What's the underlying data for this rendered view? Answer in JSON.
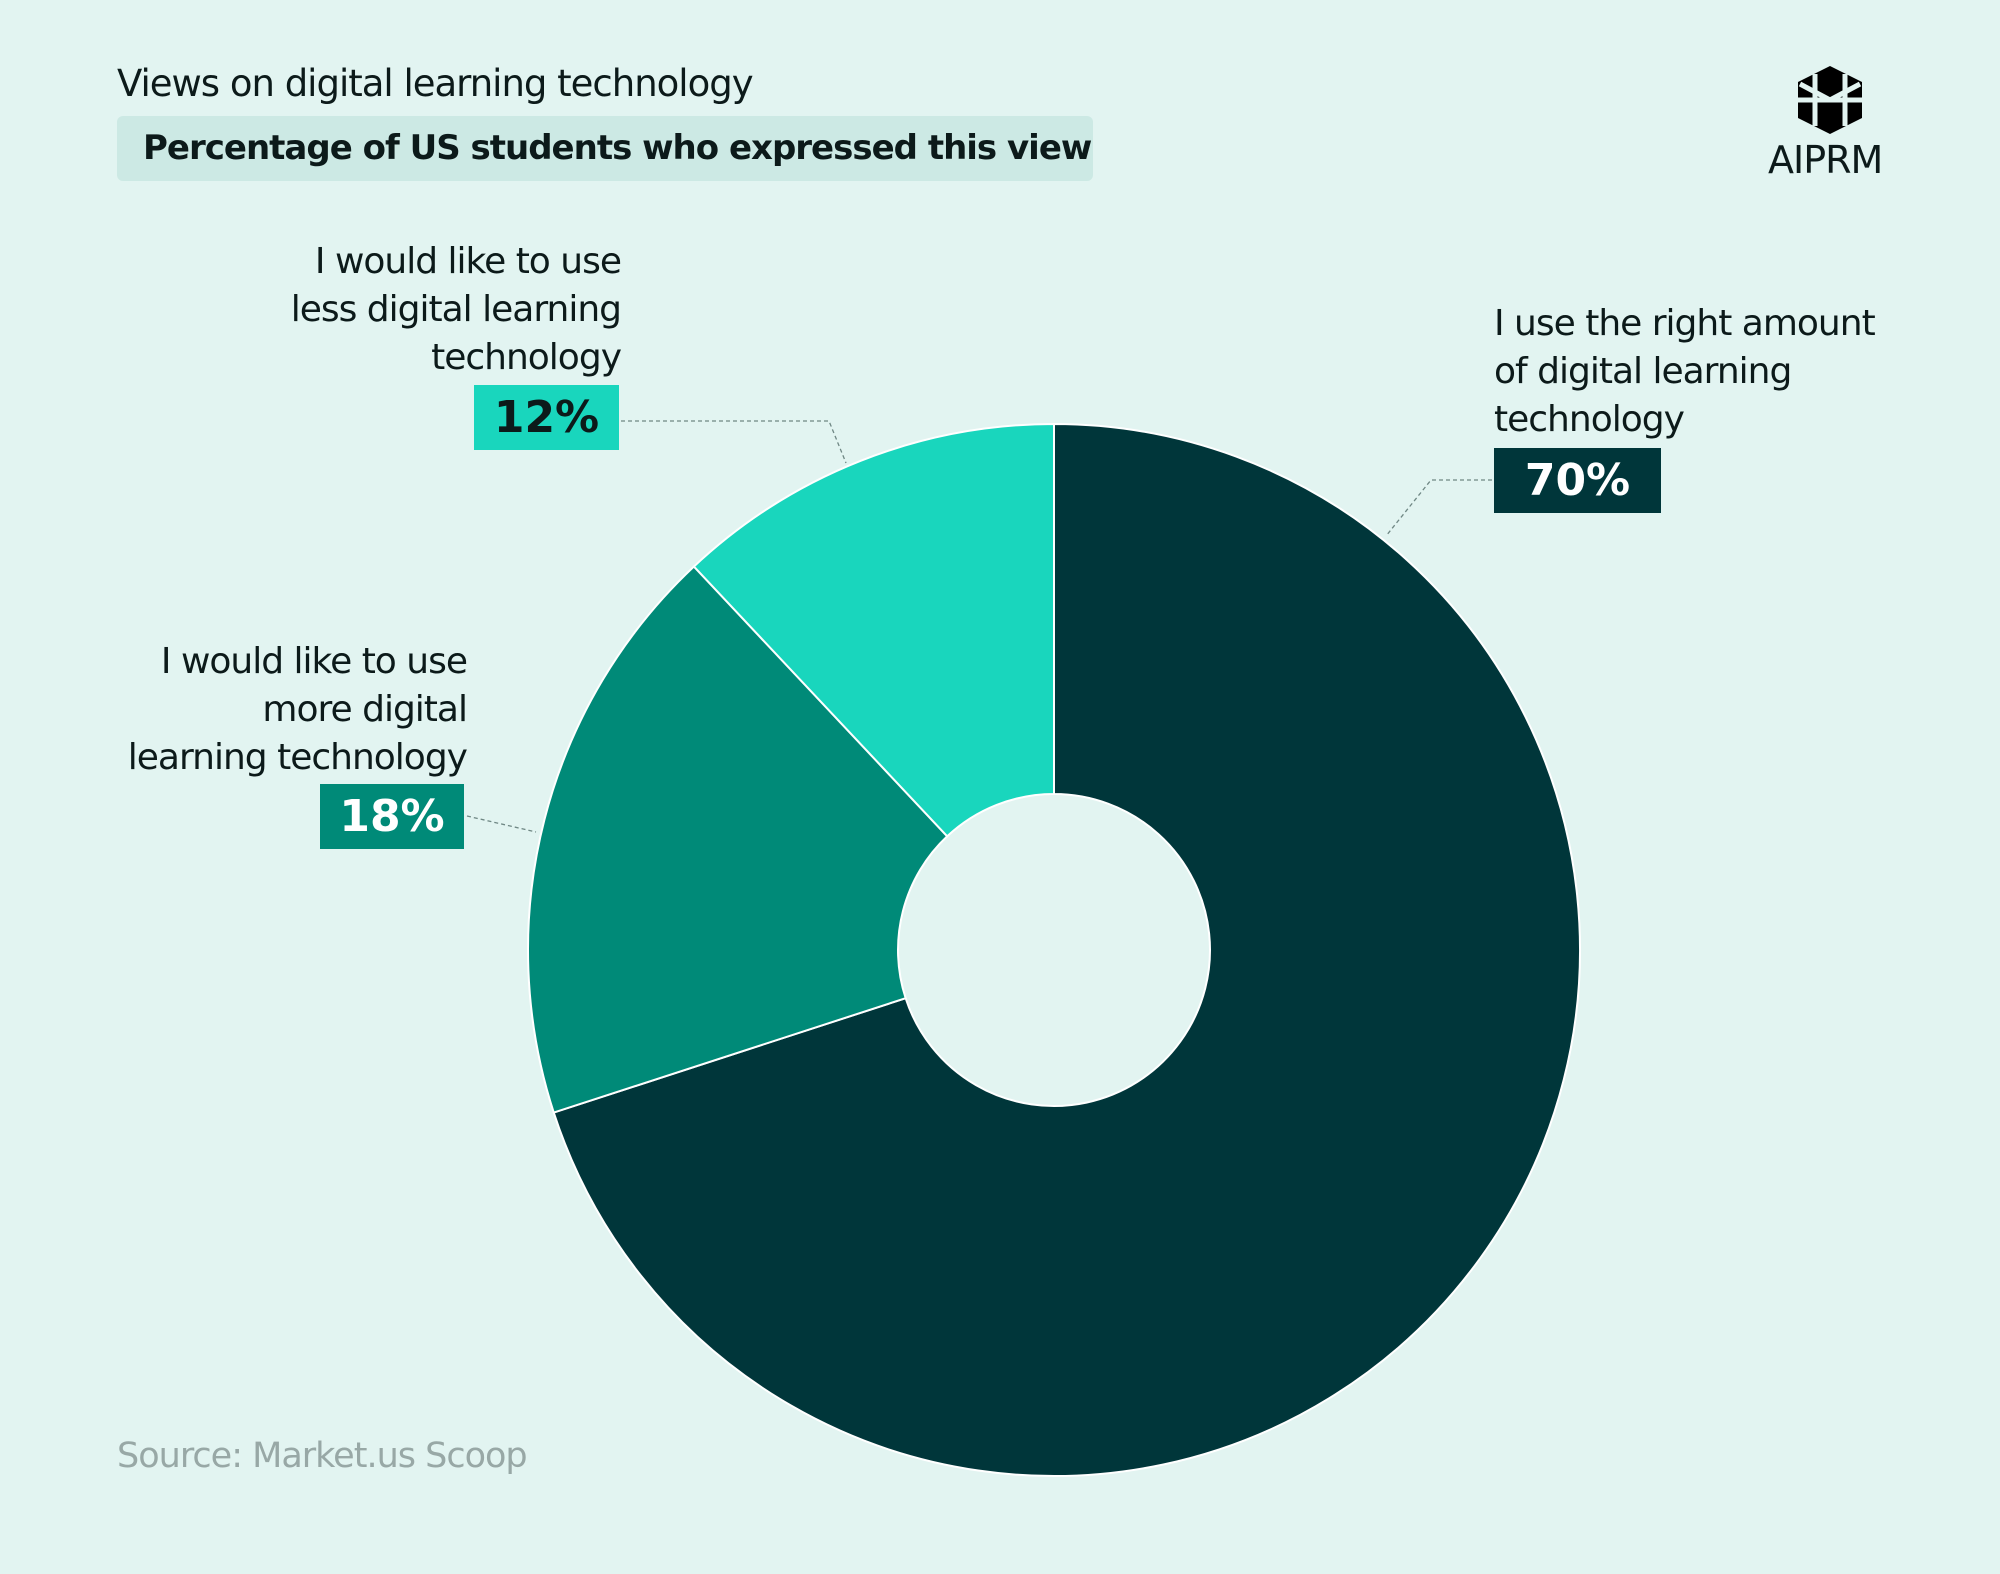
{
  "chart_data": {
    "type": "donut",
    "title": "Views on digital learning technology",
    "subtitle": "Percentage of US students who expressed this view",
    "categories": [
      "I use the right amount\nof digital learning\ntechnology",
      "I would like to use\nmore digital\nlearning technology",
      "I would like to use\nless digital learning\ntechnology"
    ],
    "values": [
      70,
      18,
      12
    ],
    "value_labels": [
      "70%",
      "18%",
      "12%"
    ],
    "colors": [
      "#00363a",
      "#008a78",
      "#19d6bd"
    ],
    "source": "Source: Market.us Scoop",
    "logo": "AIPRM"
  }
}
